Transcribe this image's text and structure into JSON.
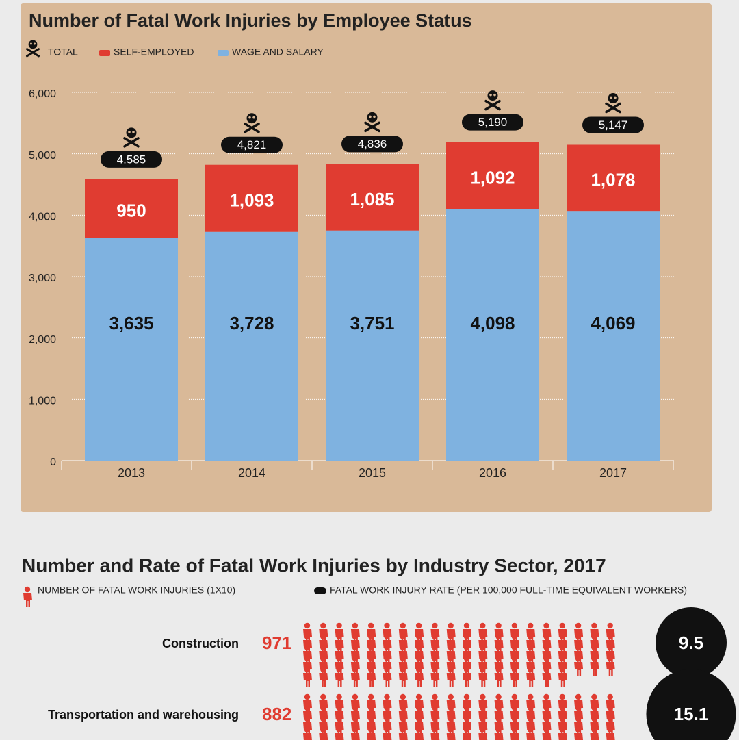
{
  "chart_data": [
    {
      "type": "bar",
      "title": "Number of Fatal Work Injuries by Employee Status",
      "categories": [
        "2013",
        "2014",
        "2015",
        "2016",
        "2017"
      ],
      "series": [
        {
          "name": "TOTAL",
          "color": "#111111",
          "values": [
            4585,
            4821,
            4836,
            5190,
            5147
          ],
          "value_labels": [
            "4.585",
            "4,821",
            "4,836",
            "5,190",
            "5,147"
          ]
        },
        {
          "name": "SELF-EMPLOYED",
          "color": "#e03c31",
          "values": [
            950,
            1093,
            1085,
            1092,
            1078
          ],
          "value_labels": [
            "950",
            "1,093",
            "1,085",
            "1,092",
            "1,078"
          ]
        },
        {
          "name": "WAGE AND SALARY",
          "color": "#7fb2e0",
          "values": [
            3635,
            3728,
            3751,
            4098,
            4069
          ],
          "value_labels": [
            "3,635",
            "3,728",
            "3,751",
            "4,098",
            "4,069"
          ]
        }
      ],
      "ylim": [
        0,
        6000
      ],
      "yticks": [
        0,
        {
          "value": 1000,
          "label": "1,000"
        },
        {
          "value": 2000,
          "label": "2,000"
        },
        {
          "value": 3000,
          "label": "3,000"
        },
        {
          "value": 4000,
          "label": "4,000"
        },
        {
          "value": 5000,
          "label": "5,000"
        },
        {
          "value": 6000,
          "label": "6,000"
        }
      ],
      "grid": true
    },
    {
      "type": "pictograph",
      "title": "Number and Rate of Fatal Work Injuries by Industry Sector, 2017",
      "categories": [
        "Construction",
        "Transportation and warehousing"
      ],
      "series": [
        {
          "name": "NUMBER OF FATAL WORK INJURIES (1X10)",
          "color": "#e03c31",
          "values": [
            971,
            882
          ]
        },
        {
          "name": "FATAL WORK INJURY RATE (PER 100,000 FULL-TIME EQUIVALENT WORKERS)",
          "color": "#111111",
          "values": [
            9.5,
            15.1
          ]
        }
      ]
    }
  ]
}
